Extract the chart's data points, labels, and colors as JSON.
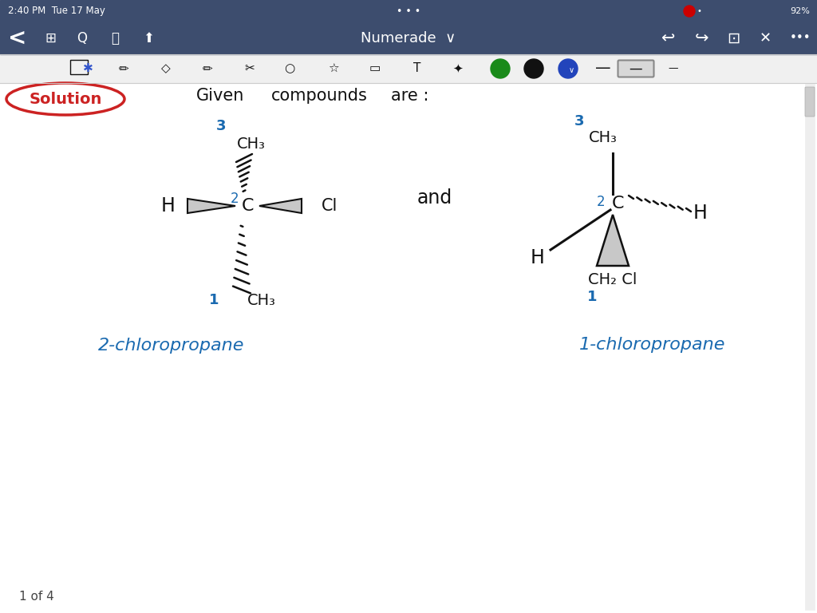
{
  "bg_color": "#ffffff",
  "toolbar_color": "#3d4d6e",
  "status_bar_color": "#3d4d6e",
  "title_text": "Numerade ∨",
  "status_time": "2:40 PM  Tue 17 May",
  "status_battery": "92%",
  "page_indicator": "1 of 4",
  "solution_text": "Solution",
  "solution_color": "#cc2222",
  "header_text": "Given   compounds   are :",
  "and_text": "and",
  "mol1_label": "2-chloropropane",
  "mol2_label": "1-chloropropane",
  "label_color": "#1a4fa0",
  "black": "#111111",
  "blue_num": "#1a6ab0",
  "gray_fill": "#c8c8c8"
}
